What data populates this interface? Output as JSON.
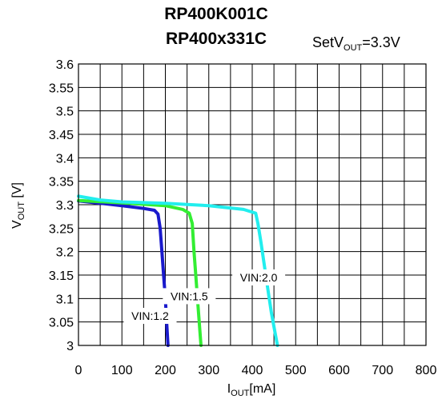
{
  "chart_data": {
    "type": "line",
    "title_lines": [
      "RP400K001C",
      "RP400x331C"
    ],
    "set_label": {
      "prefix": "SetV",
      "sub": "OUT",
      "suffix": "=3.3V"
    },
    "xlabel": {
      "prefix": "I",
      "sub": "OUT",
      "suffix": "[mA]"
    },
    "ylabel": {
      "prefix": "V",
      "sub": "OUT",
      "suffix": " [V]"
    },
    "xlim": [
      0,
      800
    ],
    "ylim": [
      3.0,
      3.6
    ],
    "x_ticks": [
      "0",
      "100",
      "200",
      "300",
      "400",
      "500",
      "600",
      "700",
      "800"
    ],
    "y_ticks": [
      "3",
      "3.05",
      "3.1",
      "3.15",
      "3.2",
      "3.25",
      "3.3",
      "3.35",
      "3.4",
      "3.45",
      "3.5",
      "3.55",
      "3.6"
    ],
    "x_grid_step": 50,
    "y_grid_step": 0.05,
    "grid": true,
    "series": [
      {
        "name": "VIN:1.2",
        "color": "#1a1acc",
        "points": [
          [
            0,
            3.308
          ],
          [
            50,
            3.303
          ],
          [
            100,
            3.298
          ],
          [
            150,
            3.292
          ],
          [
            175,
            3.288
          ],
          [
            183,
            3.28
          ],
          [
            188,
            3.25
          ],
          [
            192,
            3.2
          ],
          [
            196,
            3.15
          ],
          [
            200,
            3.1
          ],
          [
            203,
            3.05
          ],
          [
            206,
            3.0
          ]
        ],
        "label": "VIN:1.2",
        "label_at": [
          165,
          3.063
        ]
      },
      {
        "name": "VIN:1.5",
        "color": "#33ee33",
        "points": [
          [
            0,
            3.309
          ],
          [
            100,
            3.304
          ],
          [
            200,
            3.298
          ],
          [
            240,
            3.29
          ],
          [
            255,
            3.282
          ],
          [
            262,
            3.26
          ],
          [
            266,
            3.2
          ],
          [
            270,
            3.15
          ],
          [
            274,
            3.1
          ],
          [
            278,
            3.05
          ],
          [
            282,
            3.0
          ]
        ],
        "label": "VIN:1.5",
        "label_at": [
          255,
          3.105
        ]
      },
      {
        "name": "VIN:2.0",
        "color": "#22eeee",
        "points": [
          [
            0,
            3.318
          ],
          [
            50,
            3.31
          ],
          [
            100,
            3.306
          ],
          [
            200,
            3.303
          ],
          [
            300,
            3.298
          ],
          [
            380,
            3.29
          ],
          [
            408,
            3.282
          ],
          [
            413,
            3.26
          ],
          [
            420,
            3.22
          ],
          [
            428,
            3.17
          ],
          [
            436,
            3.12
          ],
          [
            444,
            3.07
          ],
          [
            452,
            3.03
          ],
          [
            458,
            3.0
          ]
        ],
        "label": "VIN:2.0",
        "label_at": [
          415,
          3.145
        ]
      }
    ]
  }
}
